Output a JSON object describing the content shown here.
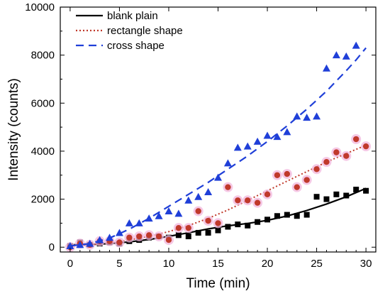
{
  "chart_data": {
    "type": "scatter",
    "xlabel": "Time (min)",
    "ylabel": "Intensity (counts)",
    "xlim": [
      -1,
      31
    ],
    "ylim": [
      -200,
      10000
    ],
    "xticks": [
      0,
      5,
      10,
      15,
      20,
      25,
      30
    ],
    "yticks": [
      0,
      2000,
      4000,
      6000,
      8000,
      10000
    ],
    "legend_position": "top-left",
    "series": [
      {
        "name": "blank plain",
        "color": "#000000",
        "marker": "square",
        "line_style": "solid",
        "points": [
          [
            0,
            50
          ],
          [
            1,
            200
          ],
          [
            2,
            100
          ],
          [
            3,
            150
          ],
          [
            4,
            200
          ],
          [
            5,
            150
          ],
          [
            6,
            250
          ],
          [
            7,
            300
          ],
          [
            8,
            400
          ],
          [
            9,
            450
          ],
          [
            10,
            400
          ],
          [
            11,
            500
          ],
          [
            12,
            450
          ],
          [
            13,
            600
          ],
          [
            14,
            600
          ],
          [
            15,
            700
          ],
          [
            16,
            850
          ],
          [
            17,
            950
          ],
          [
            18,
            900
          ],
          [
            19,
            1050
          ],
          [
            20,
            1150
          ],
          [
            21,
            1300
          ],
          [
            22,
            1350
          ],
          [
            23,
            1300
          ],
          [
            24,
            1350
          ],
          [
            25,
            2100
          ],
          [
            26,
            2000
          ],
          [
            27,
            2200
          ],
          [
            28,
            2150
          ],
          [
            29,
            2400
          ],
          [
            30,
            2350
          ]
        ],
        "fit": [
          [
            0,
            100
          ],
          [
            2,
            110
          ],
          [
            4,
            150
          ],
          [
            6,
            220
          ],
          [
            8,
            320
          ],
          [
            10,
            450
          ],
          [
            12,
            600
          ],
          [
            14,
            760
          ],
          [
            16,
            890
          ],
          [
            18,
            990
          ],
          [
            20,
            1120
          ],
          [
            22,
            1300
          ],
          [
            24,
            1530
          ],
          [
            26,
            1800
          ],
          [
            28,
            2100
          ],
          [
            30,
            2450
          ]
        ]
      },
      {
        "name": "rectangle shape",
        "color": "#c0392b",
        "marker": "circle",
        "line_style": "dotted",
        "points": [
          [
            0,
            0
          ],
          [
            1,
            150
          ],
          [
            2,
            100
          ],
          [
            3,
            250
          ],
          [
            4,
            250
          ],
          [
            5,
            200
          ],
          [
            6,
            400
          ],
          [
            7,
            450
          ],
          [
            8,
            500
          ],
          [
            9,
            450
          ],
          [
            10,
            300
          ],
          [
            11,
            800
          ],
          [
            12,
            800
          ],
          [
            13,
            1500
          ],
          [
            14,
            1100
          ],
          [
            15,
            1000
          ],
          [
            16,
            2500
          ],
          [
            17,
            1950
          ],
          [
            18,
            1950
          ],
          [
            19,
            1850
          ],
          [
            20,
            2200
          ],
          [
            21,
            3000
          ],
          [
            22,
            3050
          ],
          [
            23,
            2500
          ],
          [
            24,
            2800
          ],
          [
            25,
            3250
          ],
          [
            26,
            3550
          ],
          [
            27,
            3950
          ],
          [
            28,
            3800
          ],
          [
            29,
            4500
          ],
          [
            30,
            4200
          ]
        ],
        "fit": [
          [
            0,
            50
          ],
          [
            2,
            100
          ],
          [
            4,
            180
          ],
          [
            6,
            300
          ],
          [
            8,
            450
          ],
          [
            10,
            650
          ],
          [
            12,
            900
          ],
          [
            14,
            1200
          ],
          [
            16,
            1550
          ],
          [
            18,
            1950
          ],
          [
            20,
            2350
          ],
          [
            22,
            2750
          ],
          [
            24,
            3150
          ],
          [
            26,
            3550
          ],
          [
            28,
            3900
          ],
          [
            30,
            4250
          ]
        ]
      },
      {
        "name": "cross shape",
        "color": "#1f3fd8",
        "marker": "triangle",
        "line_style": "dashed",
        "points": [
          [
            0,
            50
          ],
          [
            1,
            100
          ],
          [
            2,
            150
          ],
          [
            3,
            300
          ],
          [
            4,
            400
          ],
          [
            5,
            600
          ],
          [
            6,
            1000
          ],
          [
            7,
            1000
          ],
          [
            8,
            1200
          ],
          [
            9,
            1300
          ],
          [
            10,
            1500
          ],
          [
            11,
            1400
          ],
          [
            12,
            1950
          ],
          [
            13,
            2100
          ],
          [
            14,
            2300
          ],
          [
            15,
            2900
          ],
          [
            16,
            3500
          ],
          [
            17,
            4150
          ],
          [
            18,
            4200
          ],
          [
            19,
            4400
          ],
          [
            20,
            4650
          ],
          [
            21,
            4600
          ],
          [
            22,
            4800
          ],
          [
            23,
            5450
          ],
          [
            24,
            5400
          ],
          [
            25,
            5450
          ],
          [
            26,
            7450
          ],
          [
            27,
            8000
          ],
          [
            28,
            7950
          ],
          [
            29,
            8400
          ]
        ],
        "fit": [
          [
            0,
            50
          ],
          [
            2,
            150
          ],
          [
            4,
            380
          ],
          [
            6,
            750
          ],
          [
            8,
            1200
          ],
          [
            10,
            1700
          ],
          [
            12,
            2200
          ],
          [
            14,
            2700
          ],
          [
            16,
            3250
          ],
          [
            18,
            3800
          ],
          [
            20,
            4400
          ],
          [
            22,
            5050
          ],
          [
            24,
            5750
          ],
          [
            26,
            6500
          ],
          [
            28,
            7350
          ],
          [
            29,
            7800
          ],
          [
            30,
            8300
          ]
        ]
      }
    ]
  }
}
